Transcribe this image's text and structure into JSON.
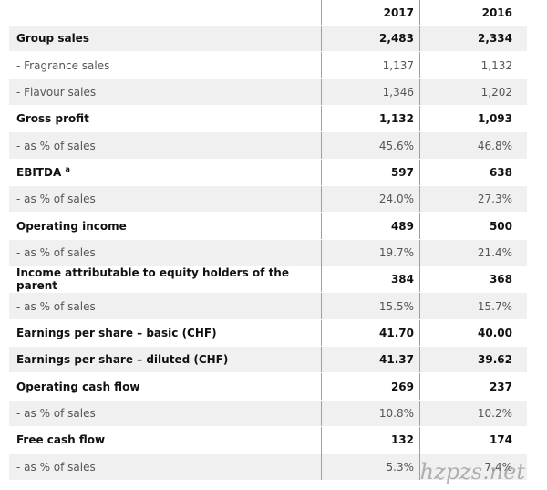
{
  "table": {
    "columns": [
      "2017",
      "2016"
    ],
    "rows": [
      {
        "label": "Group sales",
        "bold": true,
        "values": [
          "2,483",
          "2,334"
        ]
      },
      {
        "label": "- Fragrance sales",
        "bold": false,
        "values": [
          "1,137",
          "1,132"
        ]
      },
      {
        "label": "- Flavour sales",
        "bold": false,
        "values": [
          "1,346",
          "1,202"
        ]
      },
      {
        "label": "Gross profit",
        "bold": true,
        "values": [
          "1,132",
          "1,093"
        ]
      },
      {
        "label": "- as % of sales",
        "bold": false,
        "values": [
          "45.6%",
          "46.8%"
        ]
      },
      {
        "label": "EBITDA",
        "note": "a",
        "bold": true,
        "values": [
          "597",
          "638"
        ]
      },
      {
        "label": "- as % of sales",
        "bold": false,
        "values": [
          "24.0%",
          "27.3%"
        ]
      },
      {
        "label": "Operating income",
        "bold": true,
        "values": [
          "489",
          "500"
        ]
      },
      {
        "label": "- as % of sales",
        "bold": false,
        "values": [
          "19.7%",
          "21.4%"
        ]
      },
      {
        "label": "Income attributable to equity holders of the parent",
        "bold": true,
        "values": [
          "384",
          "368"
        ]
      },
      {
        "label": "- as % of sales",
        "bold": false,
        "values": [
          "15.5%",
          "15.7%"
        ]
      },
      {
        "label": "Earnings per share – basic (CHF)",
        "bold": true,
        "values": [
          "41.70",
          "40.00"
        ]
      },
      {
        "label": "Earnings per share – diluted (CHF)",
        "bold": true,
        "values": [
          "41.37",
          "39.62"
        ]
      },
      {
        "label": "Operating cash flow",
        "bold": true,
        "values": [
          "269",
          "237"
        ]
      },
      {
        "label": "- as % of sales",
        "bold": false,
        "values": [
          "10.8%",
          "10.2%"
        ]
      },
      {
        "label": "Free cash flow",
        "bold": true,
        "values": [
          "132",
          "174"
        ]
      },
      {
        "label": "- as % of sales",
        "bold": false,
        "values": [
          "5.3%",
          "7.4%"
        ]
      }
    ]
  },
  "watermark": "hzpzs.net"
}
